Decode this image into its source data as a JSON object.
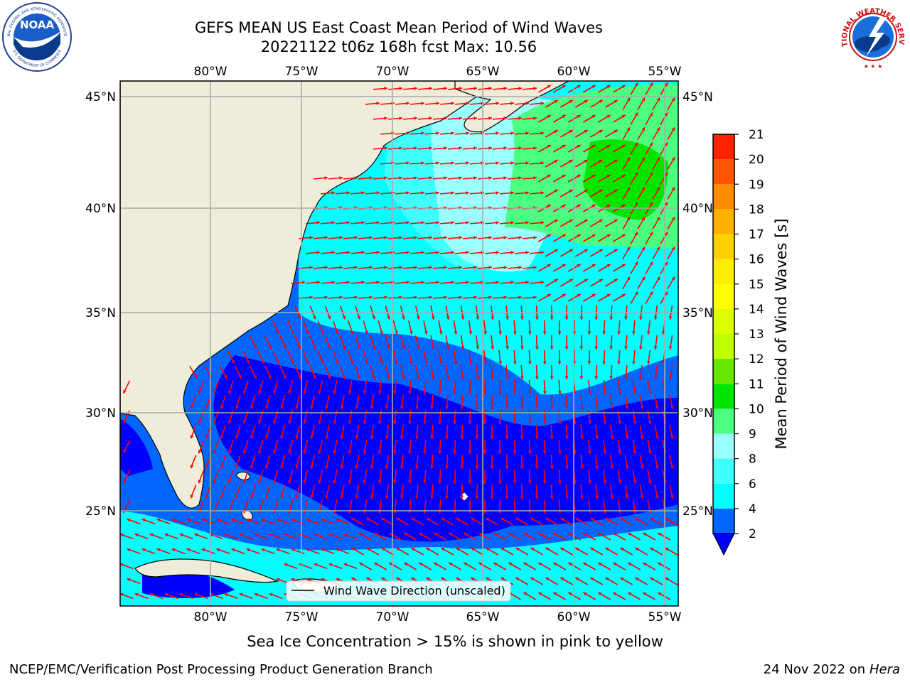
{
  "header": {
    "title_line1": "GEFS MEAN US East Coast Mean Period of Wind Waves",
    "title_line2": "20221122 t06z 168h fcst   Max: 10.56"
  },
  "logos": {
    "left": "NOAA",
    "left_ring_top": "NATIONAL OCEANIC AND ATMOSPHERIC ADMINISTRATION",
    "left_ring_bottom": "U.S. DEPARTMENT OF COMMERCE",
    "right_ring": "NATIONAL WEATHER SERVICE"
  },
  "map": {
    "lon_labels": [
      "80°W",
      "75°W",
      "70°W",
      "65°W",
      "60°W",
      "55°W"
    ],
    "lat_labels": [
      "45°N",
      "40°N",
      "35°N",
      "30°N",
      "25°N"
    ],
    "legend_label": "Wind Wave Direction (unscaled)",
    "arrow_color": "#ff0000",
    "land_color": "#efedda",
    "marker": "white-diamond"
  },
  "colorbar": {
    "label": "Mean Period of Wind Waves [s]",
    "ticks": [
      "2",
      "4",
      "6",
      "8",
      "9",
      "10",
      "11",
      "12",
      "13",
      "14",
      "15",
      "16",
      "17",
      "18",
      "19",
      "20",
      "21"
    ],
    "colors": [
      "#0066ff",
      "#00ffff",
      "#40ffff",
      "#99ffff",
      "#4dff80",
      "#00e600",
      "#66e600",
      "#bfff00",
      "#ddff00",
      "#ffff00",
      "#ffee00",
      "#ffd000",
      "#ffb000",
      "#ff8c00",
      "#ff5500",
      "#ff2200",
      "#ff0000"
    ],
    "under_color": "#0000ff"
  },
  "footer": {
    "note": "Sea Ice Concentration > 15% is shown in pink to yellow",
    "left": "NCEP/EMC/Verification Post Processing Product Generation Branch",
    "date": "24 Nov 2022 on",
    "host": "Hera"
  }
}
